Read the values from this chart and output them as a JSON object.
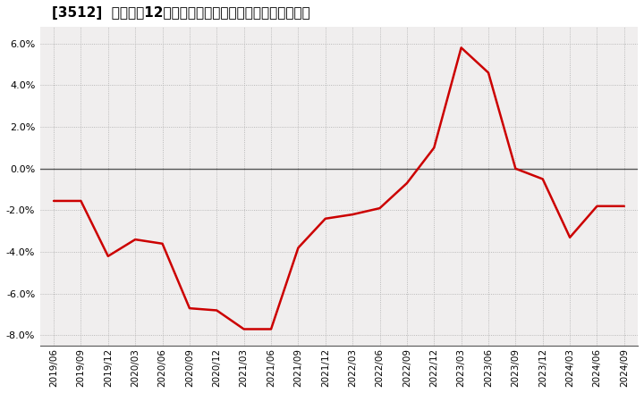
{
  "title": "[3512]  売上高の12か月移動合計の対前年同期増減率の推移",
  "line_color": "#cc0000",
  "background_color": "#ffffff",
  "plot_bg_color": "#f0eeee",
  "grid_color": "#aaaaaa",
  "zero_line_color": "#555555",
  "ylim": [
    -0.085,
    0.068
  ],
  "yticks": [
    -0.08,
    -0.06,
    -0.04,
    -0.02,
    0.0,
    0.02,
    0.04,
    0.06
  ],
  "dates": [
    "2019/06",
    "2019/09",
    "2019/12",
    "2020/03",
    "2020/06",
    "2020/09",
    "2020/12",
    "2021/03",
    "2021/06",
    "2021/09",
    "2021/12",
    "2022/03",
    "2022/06",
    "2022/09",
    "2022/12",
    "2023/03",
    "2023/06",
    "2023/09",
    "2023/12",
    "2024/03",
    "2024/06",
    "2024/09"
  ],
  "values": [
    -0.0155,
    -0.0155,
    -0.042,
    -0.034,
    -0.036,
    -0.067,
    -0.068,
    -0.077,
    -0.077,
    -0.038,
    -0.024,
    -0.022,
    -0.019,
    -0.007,
    0.01,
    0.058,
    0.046,
    0.0,
    -0.005,
    -0.033,
    -0.018,
    -0.018
  ],
  "title_fontsize": 11,
  "tick_fontsize": 8,
  "line_width": 1.8
}
